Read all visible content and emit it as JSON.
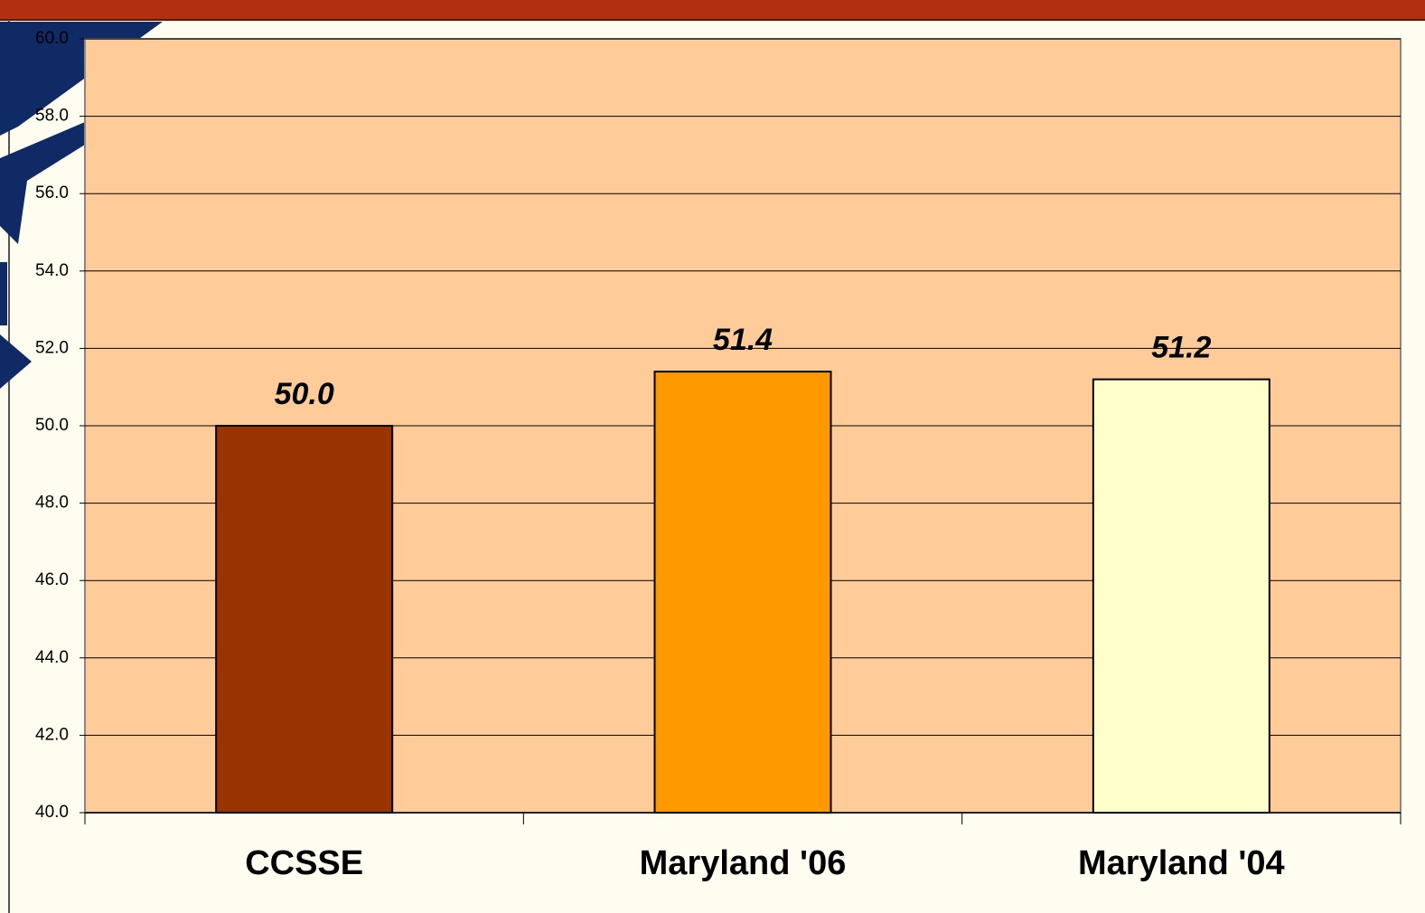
{
  "chart_data": {
    "type": "bar",
    "categories": [
      "CCSSE",
      "Maryland '06",
      "Maryland '04"
    ],
    "values": [
      50.0,
      51.4,
      51.2
    ],
    "value_labels": [
      "50.0",
      "51.4",
      "51.2"
    ],
    "colors": [
      "#993300",
      "#ff9900",
      "#ffffcc"
    ],
    "ylim": [
      40,
      60
    ],
    "yticks": [
      {
        "value": 40,
        "label": "40.0"
      },
      {
        "value": 42,
        "label": "42.0"
      },
      {
        "value": 44,
        "label": "44.0"
      },
      {
        "value": 46,
        "label": "46.0"
      },
      {
        "value": 48,
        "label": "48.0"
      },
      {
        "value": 50,
        "label": "50.0"
      },
      {
        "value": 52,
        "label": "52.0"
      },
      {
        "value": 54,
        "label": "54.0"
      },
      {
        "value": 56,
        "label": "56.0"
      },
      {
        "value": 58,
        "label": "58.0"
      },
      {
        "value": 60,
        "label": "60.0"
      }
    ],
    "grid": true
  }
}
